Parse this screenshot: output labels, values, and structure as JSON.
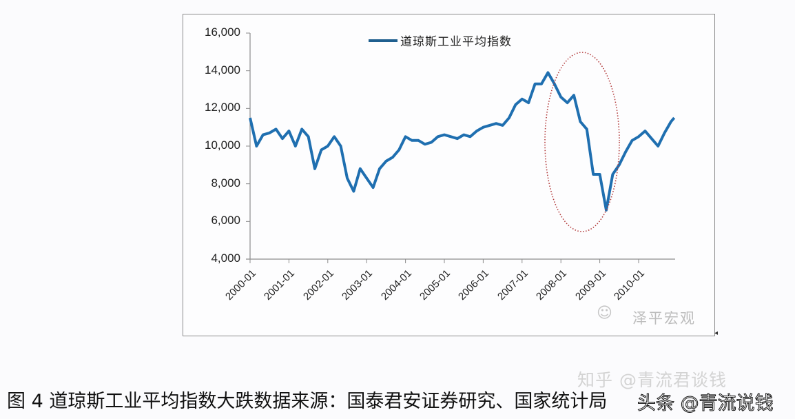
{
  "chart_data": {
    "type": "line",
    "title": "",
    "xlabel": "",
    "ylabel": "",
    "ylim": [
      4000,
      16000
    ],
    "yticks": [
      4000,
      6000,
      8000,
      10000,
      12000,
      14000,
      16000
    ],
    "ytick_labels": [
      "4,000",
      "6,000",
      "8,000",
      "10,000",
      "12,000",
      "14,000",
      "16,000"
    ],
    "xtick_labels": [
      "2000-01",
      "2001-01",
      "2002-01",
      "2003-01",
      "2004-01",
      "2005-01",
      "2006-01",
      "2007-01",
      "2008-01",
      "2009-01",
      "2010-01"
    ],
    "grid": false,
    "legend_position": "top-center",
    "series": [
      {
        "name": "道琼斯工业平均指数",
        "color": "#1f6fb0",
        "x": [
          "2000-01",
          "2000-03",
          "2000-05",
          "2000-07",
          "2000-09",
          "2000-11",
          "2001-01",
          "2001-03",
          "2001-05",
          "2001-07",
          "2001-09",
          "2001-11",
          "2002-01",
          "2002-03",
          "2002-05",
          "2002-07",
          "2002-09",
          "2002-11",
          "2003-01",
          "2003-03",
          "2003-05",
          "2003-07",
          "2003-09",
          "2003-11",
          "2004-01",
          "2004-03",
          "2004-05",
          "2004-07",
          "2004-09",
          "2004-11",
          "2005-01",
          "2005-03",
          "2005-05",
          "2005-07",
          "2005-09",
          "2005-11",
          "2006-01",
          "2006-03",
          "2006-05",
          "2006-07",
          "2006-09",
          "2006-11",
          "2007-01",
          "2007-03",
          "2007-05",
          "2007-07",
          "2007-09",
          "2007-11",
          "2008-01",
          "2008-03",
          "2008-05",
          "2008-07",
          "2008-09",
          "2008-11",
          "2009-01",
          "2009-03",
          "2009-05",
          "2009-07",
          "2009-09",
          "2009-11",
          "2010-01",
          "2010-03",
          "2010-05",
          "2010-07",
          "2010-09",
          "2010-11",
          "2010-12"
        ],
        "values": [
          11500,
          10000,
          10600,
          10700,
          10900,
          10400,
          10800,
          10000,
          10900,
          10500,
          8800,
          9800,
          10000,
          10500,
          10000,
          8300,
          7600,
          8800,
          8300,
          7800,
          8800,
          9200,
          9400,
          9800,
          10500,
          10300,
          10300,
          10100,
          10200,
          10500,
          10600,
          10500,
          10400,
          10600,
          10500,
          10800,
          11000,
          11100,
          11200,
          11100,
          11500,
          12200,
          12500,
          12300,
          13300,
          13300,
          13900,
          13300,
          12600,
          12300,
          12700,
          11300,
          10900,
          8500,
          8500,
          6600,
          8500,
          9000,
          9700,
          10300,
          10500,
          10800,
          10400,
          10000,
          10700,
          11300,
          11500
        ]
      }
    ],
    "annotations": [
      {
        "type": "dotted-ellipse",
        "color": "#b03030",
        "highlights": "2008-2009 crash"
      }
    ]
  },
  "legend": {
    "label": "道琼斯工业平均指数"
  },
  "watermarks": {
    "chart_logo": "泽平宏观",
    "zhihu": "知乎 @青流君谈钱",
    "toutiao": "头条 @青流说钱"
  },
  "caption": "图 4 道琼斯工业平均指数大跌数据来源：国泰君安证券研究、国家统计局"
}
